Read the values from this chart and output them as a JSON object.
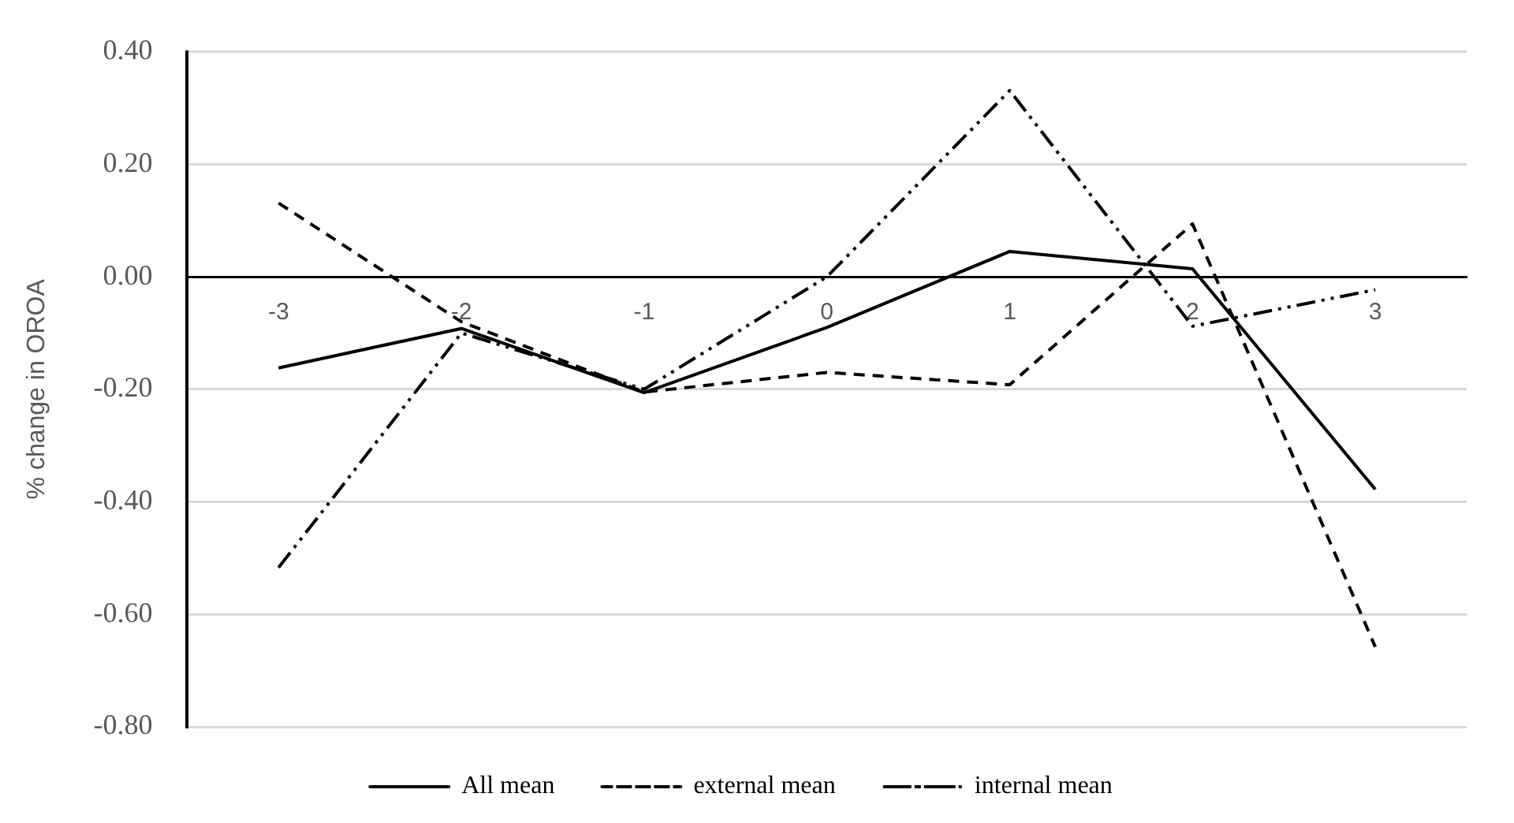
{
  "chart_data": {
    "type": "line",
    "ylabel": "% change in OROA",
    "categories": [
      "-3",
      "-2",
      "-1",
      "0",
      "1",
      "2",
      "3"
    ],
    "series": [
      {
        "name": "All mean",
        "color": "#000000",
        "line_style": "solid",
        "values": [
          -0.162,
          -0.092,
          -0.206,
          -0.09,
          0.045,
          0.014,
          -0.378
        ]
      },
      {
        "name": "external mean",
        "color": "#000000",
        "line_style": "dashed",
        "values": [
          0.131,
          -0.08,
          -0.205,
          -0.17,
          -0.192,
          0.094,
          -0.658
        ]
      },
      {
        "name": "internal mean",
        "color": "#000000",
        "line_style": "dashdot",
        "values": [
          -0.517,
          -0.1,
          -0.2,
          0.0,
          0.331,
          -0.088,
          -0.023
        ]
      }
    ],
    "ylim": [
      -0.8,
      0.4
    ],
    "yticks": [
      {
        "value": -0.8,
        "label": "-0.80"
      },
      {
        "value": -0.6,
        "label": "-0.60"
      },
      {
        "value": -0.4,
        "label": "-0.40"
      },
      {
        "value": -0.2,
        "label": "-0.20"
      },
      {
        "value": 0,
        "label": "0.00"
      },
      {
        "value": 0.2,
        "label": "0.20"
      },
      {
        "value": 0.4,
        "label": "0.40"
      }
    ],
    "grid": "y",
    "legend": "bottom",
    "marker": "none"
  }
}
